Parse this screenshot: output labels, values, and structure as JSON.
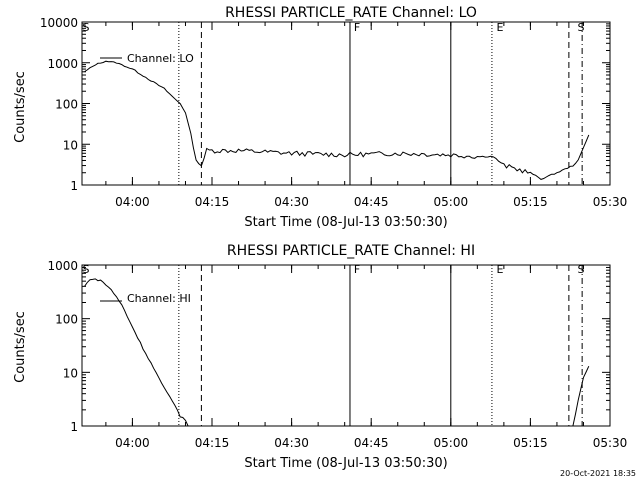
{
  "footer_date": "20-Oct-2021 18:35",
  "chart_data": [
    {
      "type": "line",
      "title": "RHESSI PARTICLE_RATE Channel: LO",
      "xlabel": "Start Time (08-Jul-13 03:50:30)",
      "ylabel": "Counts/sec",
      "yscale": "log",
      "ylim": [
        1,
        10000
      ],
      "xlim": [
        "03:50:30",
        "05:30:00"
      ],
      "xtick_labels": [
        "04:00",
        "04:15",
        "04:30",
        "04:45",
        "05:00",
        "05:15",
        "05:30"
      ],
      "ytick_labels": [
        "1",
        "10",
        "100",
        "1000",
        "10000"
      ],
      "legend": "Channel: LO",
      "markers": {
        "S_start": "S",
        "F": "F",
        "E": "E",
        "S_end": "S"
      },
      "series": [
        {
          "name": "Channel: LO",
          "x": [
            "03:51",
            "03:53",
            "03:55",
            "03:57",
            "04:00",
            "04:03",
            "04:06",
            "04:08",
            "04:09",
            "04:10",
            "04:11",
            "04:12",
            "04:13",
            "04:14",
            "04:20",
            "04:30",
            "04:40",
            "04:50",
            "05:00",
            "05:05",
            "05:08",
            "05:10",
            "05:15",
            "05:17",
            "05:20",
            "05:23",
            "05:24",
            "05:26"
          ],
          "values": [
            600,
            900,
            1100,
            1000,
            700,
            400,
            230,
            130,
            100,
            60,
            18,
            4,
            3,
            7,
            7,
            6,
            5.5,
            6,
            5.5,
            5,
            5,
            3,
            2,
            1.4,
            2,
            3,
            4,
            17
          ]
        }
      ]
    },
    {
      "type": "line",
      "title": "RHESSI PARTICLE_RATE Channel: HI",
      "xlabel": "Start Time (08-Jul-13 03:50:30)",
      "ylabel": "Counts/sec",
      "yscale": "log",
      "ylim": [
        1,
        1000
      ],
      "xlim": [
        "03:50:30",
        "05:30:00"
      ],
      "xtick_labels": [
        "04:00",
        "04:15",
        "04:30",
        "04:45",
        "05:00",
        "05:15",
        "05:30"
      ],
      "ytick_labels": [
        "1",
        "10",
        "100",
        "1000"
      ],
      "legend": "Channel: HI",
      "markers": {
        "S_start": "S",
        "F": "F",
        "E": "E",
        "S_end": "S"
      },
      "series": [
        {
          "name": "Channel: HI",
          "x": [
            "03:51",
            "03:52",
            "03:54",
            "03:56",
            "03:58",
            "04:00",
            "04:02",
            "04:04",
            "04:06",
            "04:08",
            "04:09",
            "04:10",
            "04:10:30",
            "05:23",
            "05:24",
            "05:25",
            "05:26"
          ],
          "values": [
            400,
            550,
            520,
            350,
            180,
            70,
            28,
            12,
            5,
            2.5,
            1.5,
            1.3,
            1,
            1,
            3,
            8,
            13
          ]
        }
      ]
    }
  ]
}
